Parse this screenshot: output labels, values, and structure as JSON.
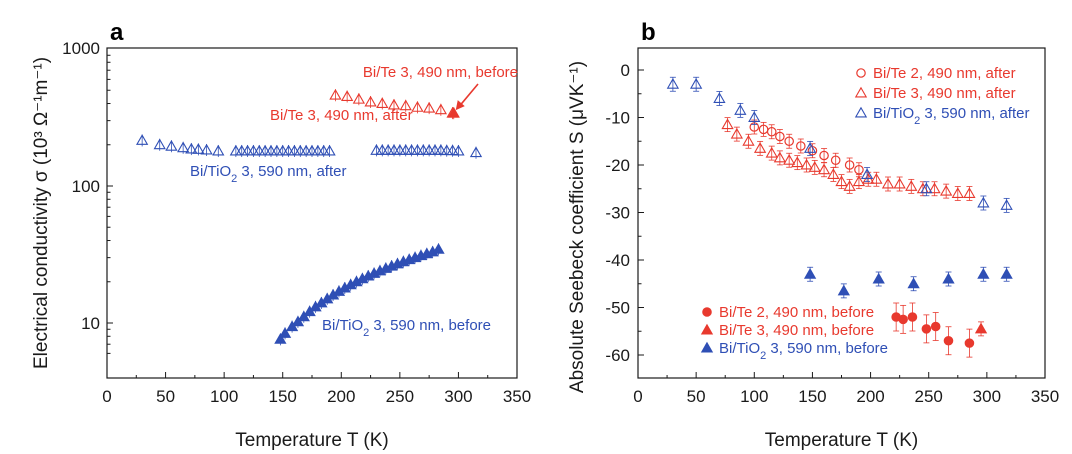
{
  "chart_data": [
    {
      "panel": "a",
      "type": "scatter",
      "xlabel": "Temperature T (K)",
      "ylabel": "Electrical conductivity σ (10³ Ω⁻¹m⁻¹)",
      "xlim": [
        0,
        350
      ],
      "ylim": [
        5,
        1000
      ],
      "yscale": "log",
      "xticks": [
        "0",
        "50",
        "100",
        "150",
        "200",
        "250",
        "300",
        "350"
      ],
      "yticks": [
        "10",
        "100",
        "1000"
      ],
      "grid": false,
      "series": [
        {
          "name": "Bi/Te 3, 490 nm, after",
          "color": "#e8392e",
          "marker": "triangle",
          "filled": false,
          "x": [
            195,
            205,
            215,
            225,
            235,
            245,
            255,
            265,
            275,
            285,
            295
          ],
          "y": [
            460,
            450,
            430,
            410,
            400,
            390,
            385,
            375,
            370,
            360,
            340
          ]
        },
        {
          "name": "Bi/Te 3, 490 nm, before",
          "color": "#e8392e",
          "marker": "triangle",
          "filled": true,
          "x": [
            296
          ],
          "y": [
            340
          ]
        },
        {
          "name": "Bi/TiO2 3, 590 nm, after",
          "color": "#2f4fb5",
          "marker": "triangle",
          "filled": false,
          "x": [
            30,
            45,
            55,
            65,
            72,
            78,
            85,
            95,
            110,
            115,
            120,
            125,
            130,
            135,
            140,
            145,
            150,
            155,
            160,
            165,
            170,
            175,
            180,
            185,
            190,
            230,
            235,
            240,
            245,
            250,
            255,
            260,
            265,
            270,
            275,
            280,
            285,
            290,
            295,
            300,
            315
          ],
          "y": [
            215,
            200,
            195,
            190,
            186,
            185,
            183,
            180,
            180,
            180,
            180,
            180,
            180,
            180,
            180,
            180,
            180,
            180,
            180,
            180,
            180,
            180,
            180,
            180,
            180,
            182,
            182,
            182,
            182,
            182,
            182,
            182,
            182,
            182,
            182,
            182,
            182,
            181,
            181,
            180,
            175
          ]
        },
        {
          "name": "Bi/TiO2 3, 590 nm, before",
          "color": "#2f4fb5",
          "marker": "triangle",
          "filled": true,
          "x": [
            148,
            152,
            158,
            163,
            168,
            173,
            178,
            183,
            188,
            193,
            198,
            203,
            208,
            213,
            218,
            223,
            228,
            233,
            238,
            243,
            248,
            253,
            258,
            263,
            268,
            273,
            278,
            283
          ],
          "y": [
            7.6,
            8.4,
            9.4,
            10.2,
            11.1,
            12.1,
            13.1,
            14.0,
            15.0,
            16.0,
            17.0,
            18.0,
            19.0,
            20.0,
            21.0,
            22.0,
            23.0,
            24.0,
            25.0,
            26.0,
            27.0,
            28.0,
            29.0,
            30.0,
            31.0,
            32.0,
            33.0,
            34.5
          ]
        }
      ],
      "annotations": [
        {
          "text": "Bi/Te 3, 490 nm, before",
          "color": "#e8392e"
        },
        {
          "text": "Bi/Te 3, 490 nm, after",
          "color": "#e8392e"
        },
        {
          "text": "Bi/TiO",
          "sub": "2",
          "rest": " 3, 590 nm, after",
          "color": "#2f4fb5"
        },
        {
          "text": "Bi/TiO",
          "sub": "2",
          "rest": " 3, 590 nm, before",
          "color": "#2f4fb5"
        }
      ]
    },
    {
      "panel": "b",
      "type": "scatter",
      "xlabel": "Temperature T (K)",
      "ylabel": "Absolute Seebeck coefficient S (μVK⁻¹)",
      "xlim": [
        0,
        350
      ],
      "ylim": [
        -63,
        5
      ],
      "xticks": [
        "0",
        "50",
        "100",
        "150",
        "200",
        "250",
        "300",
        "350"
      ],
      "yticks": [
        "0",
        "-10",
        "-20",
        "-30",
        "-40",
        "-50",
        "-60"
      ],
      "grid": false,
      "series": [
        {
          "name": "Bi/Te 2, 490 nm, after",
          "color": "#e8392e",
          "marker": "circle",
          "filled": false,
          "x": [
            100,
            108,
            115,
            122,
            130,
            140,
            150,
            160,
            170,
            182,
            190
          ],
          "y": [
            -12,
            -12.5,
            -13,
            -14,
            -15,
            -16,
            -17,
            -18,
            -19,
            -20,
            -21
          ]
        },
        {
          "name": "Bi/Te 3, 490 nm, after",
          "color": "#e8392e",
          "marker": "triangle",
          "filled": false,
          "x": [
            77,
            85,
            95,
            105,
            115,
            122,
            130,
            137,
            145,
            152,
            160,
            168,
            175,
            182,
            190,
            198,
            205,
            215,
            225,
            235,
            245,
            255,
            265,
            275,
            285
          ],
          "y": [
            -11.5,
            -13.5,
            -15,
            -16.5,
            -17.5,
            -18.5,
            -19,
            -19.5,
            -20,
            -20.5,
            -21,
            -22,
            -23.5,
            -24.5,
            -23.5,
            -23,
            -23,
            -24,
            -24,
            -24.5,
            -25,
            -25,
            -25.5,
            -26,
            -26
          ]
        },
        {
          "name": "Bi/TiO2 3, 590 nm, after",
          "color": "#2f4fb5",
          "marker": "triangle",
          "filled": false,
          "x": [
            30,
            50,
            70,
            88,
            100,
            148,
            197,
            248,
            297,
            317
          ],
          "y": [
            -3,
            -3,
            -6,
            -8.5,
            -10,
            -16.5,
            -22,
            -25,
            -28,
            -28.5
          ]
        },
        {
          "name": "Bi/Te 2, 490 nm, before",
          "color": "#e8392e",
          "marker": "circle",
          "filled": true,
          "x": [
            222,
            228,
            236,
            248,
            256,
            267,
            285
          ],
          "y": [
            -52,
            -52.5,
            -52,
            -54.5,
            -54,
            -57,
            -57.5
          ]
        },
        {
          "name": "Bi/Te 3, 490 nm, before",
          "color": "#e8392e",
          "marker": "triangle",
          "filled": true,
          "x": [
            295
          ],
          "y": [
            -54.5
          ]
        },
        {
          "name": "Bi/TiO2 3, 590 nm, before",
          "color": "#2f4fb5",
          "marker": "triangle",
          "filled": true,
          "x": [
            148,
            177,
            207,
            237,
            267,
            297,
            317
          ],
          "y": [
            -43,
            -46.5,
            -44,
            -45,
            -44,
            -43,
            -43
          ]
        }
      ],
      "legend_top": [
        {
          "label": "Bi/Te 2, 490 nm, after",
          "color": "#e8392e",
          "marker": "circle",
          "filled": false
        },
        {
          "label": "Bi/Te 3, 490 nm, after",
          "color": "#e8392e",
          "marker": "triangle",
          "filled": false
        },
        {
          "label": "Bi/TiO",
          "sub": "2",
          "rest": " 3, 590 nm, after",
          "color": "#2f4fb5",
          "marker": "triangle",
          "filled": false
        }
      ],
      "legend_bottom": [
        {
          "label": "Bi/Te 2, 490 nm, before",
          "color": "#e8392e",
          "marker": "circle",
          "filled": true
        },
        {
          "label": "Bi/Te 3, 490 nm, before",
          "color": "#e8392e",
          "marker": "triangle",
          "filled": true
        },
        {
          "label": "Bi/TiO",
          "sub": "2",
          "rest": " 3, 590 nm, before",
          "color": "#2f4fb5",
          "marker": "triangle",
          "filled": true
        }
      ]
    }
  ]
}
